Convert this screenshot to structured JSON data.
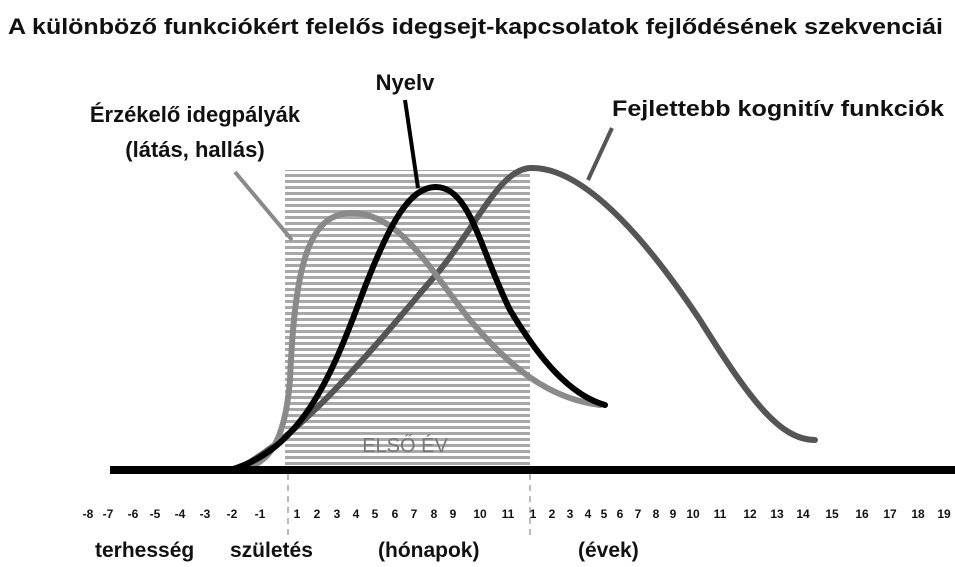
{
  "title": "A különböző funkciókért felelős idegsejt-kapcsolatok fejlődésének szekvenciái",
  "curve_labels": {
    "language": "Nyelv",
    "sensory_line1": "Érzékelő idegpályák",
    "sensory_line2": "(látás, hallás)",
    "cognitive": "Fejlettebb kognitív funkciók"
  },
  "first_year": "ELSŐ ÉV",
  "axis_ticks": [
    "-8",
    "-7",
    "-6",
    "-5",
    "-4",
    "-3",
    "-2",
    "-1",
    "1",
    "2",
    "3",
    "4",
    "5",
    "6",
    "7",
    "8",
    "9",
    "10",
    "11",
    "1",
    "2",
    "3",
    "4",
    "5",
    "6",
    "7",
    "8",
    "9",
    "10",
    "11",
    "12",
    "13",
    "14",
    "15",
    "16",
    "17",
    "18",
    "19"
  ],
  "axis_labels": [
    "terhesség",
    "születés",
    "(hónapok)",
    "(évek)"
  ]
}
